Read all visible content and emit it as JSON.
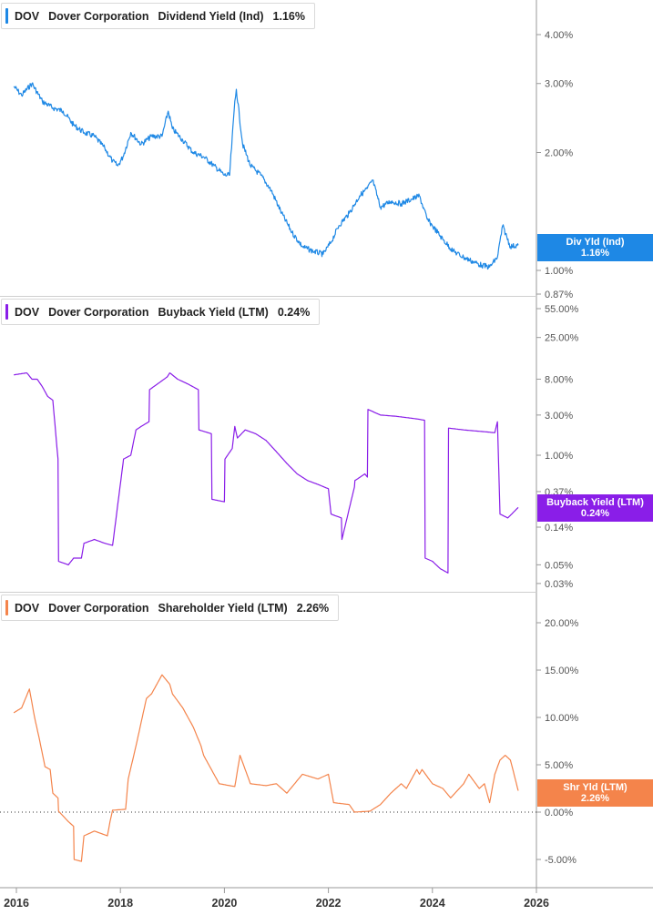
{
  "panels": [
    {
      "ticker": "DOV",
      "company": "Dover Corporation",
      "metric": "Dividend Yield (Ind)",
      "value": "1.16%",
      "badge_line1": "Div Yld (Ind)",
      "badge_line2": "1.16%",
      "color": "#1e88e5"
    },
    {
      "ticker": "DOV",
      "company": "Dover Corporation",
      "metric": "Buyback Yield (LTM)",
      "value": "0.24%",
      "badge_line1": "Buyback Yield (LTM)",
      "badge_line2": "0.24%",
      "color": "#8a1ee8"
    },
    {
      "ticker": "DOV",
      "company": "Dover Corporation",
      "metric": "Shareholder Yield (LTM)",
      "value": "2.26%",
      "badge_line1": "Shr Yld (LTM)",
      "badge_line2": "2.26%",
      "color": "#f4844b"
    }
  ],
  "chart_data": [
    {
      "type": "line",
      "title": "Dividend Yield (Ind)",
      "scale": "log",
      "yticks": [
        "4.00%",
        "3.00%",
        "2.00%",
        "1.00%",
        "0.87%"
      ],
      "ytick_values": [
        4.0,
        3.0,
        2.0,
        1.0,
        0.87
      ],
      "x_range": [
        2015.9,
        2026
      ],
      "xticks": [
        "2016",
        "2018",
        "2020",
        "2022",
        "2024",
        "2026"
      ],
      "series": [
        {
          "name": "Div Yld (Ind)",
          "x": [
            2015.95,
            2016.1,
            2016.3,
            2016.5,
            2016.7,
            2016.9,
            2017.1,
            2017.3,
            2017.5,
            2017.7,
            2017.85,
            2017.95,
            2018.05,
            2018.2,
            2018.4,
            2018.6,
            2018.8,
            2018.92,
            2019.0,
            2019.2,
            2019.4,
            2019.6,
            2019.8,
            2020.0,
            2020.1,
            2020.2,
            2020.23,
            2020.35,
            2020.5,
            2020.7,
            2020.9,
            2021.1,
            2021.3,
            2021.5,
            2021.7,
            2021.9,
            2022.05,
            2022.2,
            2022.4,
            2022.6,
            2022.75,
            2022.85,
            2023.0,
            2023.2,
            2023.4,
            2023.6,
            2023.75,
            2023.9,
            2024.0,
            2024.2,
            2024.4,
            2024.6,
            2024.8,
            2024.95,
            2025.1,
            2025.25,
            2025.35,
            2025.5,
            2025.65
          ],
          "y": [
            2.95,
            2.8,
            3.0,
            2.7,
            2.6,
            2.55,
            2.35,
            2.25,
            2.2,
            2.05,
            1.9,
            1.85,
            1.95,
            2.25,
            2.1,
            2.2,
            2.2,
            2.55,
            2.3,
            2.15,
            2.0,
            1.95,
            1.85,
            1.75,
            1.75,
            2.7,
            2.9,
            2.1,
            1.85,
            1.75,
            1.6,
            1.4,
            1.25,
            1.15,
            1.12,
            1.1,
            1.18,
            1.3,
            1.4,
            1.55,
            1.62,
            1.7,
            1.45,
            1.5,
            1.48,
            1.52,
            1.55,
            1.35,
            1.3,
            1.2,
            1.12,
            1.08,
            1.05,
            1.03,
            1.02,
            1.08,
            1.3,
            1.15,
            1.16
          ]
        }
      ]
    },
    {
      "type": "line",
      "title": "Buyback Yield (LTM)",
      "scale": "log",
      "yticks": [
        "55.00%",
        "25.00%",
        "8.00%",
        "3.00%",
        "1.00%",
        "0.37%",
        "0.14%",
        "0.05%",
        "0.03%"
      ],
      "ytick_values": [
        55,
        25,
        8,
        3,
        1,
        0.37,
        0.14,
        0.05,
        0.03
      ],
      "x_range": [
        2015.9,
        2026
      ],
      "xticks": [
        "2016",
        "2018",
        "2020",
        "2022",
        "2024",
        "2026"
      ],
      "series": [
        {
          "name": "Buyback Yield (LTM)",
          "x": [
            2015.95,
            2016.2,
            2016.3,
            2016.4,
            2016.5,
            2016.6,
            2016.7,
            2016.8,
            2016.81,
            2017.0,
            2017.1,
            2017.25,
            2017.3,
            2017.5,
            2017.7,
            2017.85,
            2018.05,
            2018.06,
            2018.2,
            2018.3,
            2018.4,
            2018.55,
            2018.56,
            2018.9,
            2018.95,
            2019.1,
            2019.3,
            2019.5,
            2019.51,
            2019.75,
            2019.76,
            2020.0,
            2020.01,
            2020.15,
            2020.2,
            2020.25,
            2020.4,
            2020.6,
            2020.8,
            2021.0,
            2021.2,
            2021.4,
            2021.6,
            2021.8,
            2022.0,
            2022.05,
            2022.25,
            2022.26,
            2022.5,
            2022.51,
            2022.7,
            2022.75,
            2022.76,
            2023.0,
            2023.3,
            2023.7,
            2023.85,
            2023.86,
            2024.0,
            2024.15,
            2024.3,
            2024.31,
            2024.6,
            2025.0,
            2025.2,
            2025.25,
            2025.3,
            2025.45,
            2025.65
          ],
          "y": [
            9.0,
            9.5,
            8.0,
            8.0,
            6.5,
            5.0,
            4.5,
            0.9,
            0.055,
            0.05,
            0.06,
            0.06,
            0.09,
            0.1,
            0.09,
            0.085,
            0.8,
            0.9,
            1.0,
            2.0,
            2.2,
            2.5,
            6.0,
            8.5,
            9.5,
            8.0,
            7.0,
            6.0,
            2.0,
            1.8,
            0.3,
            0.28,
            0.9,
            1.2,
            2.2,
            1.6,
            2.0,
            1.8,
            1.5,
            1.1,
            0.8,
            0.6,
            0.5,
            0.45,
            0.4,
            0.2,
            0.18,
            0.1,
            0.42,
            0.5,
            0.6,
            0.55,
            3.5,
            3.0,
            2.9,
            2.7,
            2.6,
            0.06,
            0.055,
            0.045,
            0.04,
            2.1,
            2.0,
            1.9,
            1.85,
            2.5,
            0.2,
            0.18,
            0.24
          ]
        }
      ]
    },
    {
      "type": "line",
      "title": "Shareholder Yield (LTM)",
      "scale": "linear",
      "yticks": [
        "20.00%",
        "15.00%",
        "10.00%",
        "5.00%",
        "0.00%",
        "-5.00%"
      ],
      "ytick_values": [
        20,
        15,
        10,
        5,
        0,
        -5
      ],
      "x_range": [
        2015.9,
        2026
      ],
      "xticks": [
        "2016",
        "2018",
        "2020",
        "2022",
        "2024",
        "2026"
      ],
      "series": [
        {
          "name": "Shr Yld (LTM)",
          "x": [
            2015.95,
            2016.1,
            2016.25,
            2016.35,
            2016.45,
            2016.55,
            2016.65,
            2016.7,
            2016.8,
            2016.81,
            2017.0,
            2017.1,
            2017.11,
            2017.25,
            2017.3,
            2017.5,
            2017.75,
            2017.8,
            2017.85,
            2018.1,
            2018.15,
            2018.3,
            2018.5,
            2018.6,
            2018.8,
            2018.95,
            2019.0,
            2019.2,
            2019.4,
            2019.55,
            2019.6,
            2019.9,
            2020.1,
            2020.2,
            2020.3,
            2020.5,
            2020.8,
            2021.0,
            2021.2,
            2021.5,
            2021.8,
            2022.0,
            2022.1,
            2022.4,
            2022.5,
            2022.8,
            2023.0,
            2023.2,
            2023.4,
            2023.5,
            2023.7,
            2023.75,
            2023.8,
            2024.0,
            2024.2,
            2024.35,
            2024.6,
            2024.7,
            2024.9,
            2025.0,
            2025.1,
            2025.2,
            2025.3,
            2025.4,
            2025.5,
            2025.65
          ],
          "y": [
            10.5,
            11.0,
            13.0,
            10.0,
            7.5,
            4.8,
            4.5,
            2.0,
            1.5,
            0.1,
            -1.0,
            -1.5,
            -5.0,
            -5.2,
            -2.5,
            -2.0,
            -2.5,
            -1.0,
            0.2,
            0.3,
            3.5,
            7.0,
            12.0,
            12.5,
            14.5,
            13.5,
            12.5,
            11.0,
            9.0,
            7.0,
            6.0,
            3.0,
            2.8,
            2.7,
            6.0,
            3.0,
            2.8,
            3.0,
            2.0,
            4.0,
            3.5,
            4.0,
            1.0,
            0.8,
            0.0,
            0.1,
            0.8,
            2.0,
            3.0,
            2.5,
            4.5,
            4.0,
            4.5,
            3.0,
            2.5,
            1.5,
            3.0,
            4.0,
            2.5,
            3.0,
            1.0,
            4.0,
            5.5,
            6.0,
            5.5,
            2.26
          ]
        }
      ]
    }
  ]
}
